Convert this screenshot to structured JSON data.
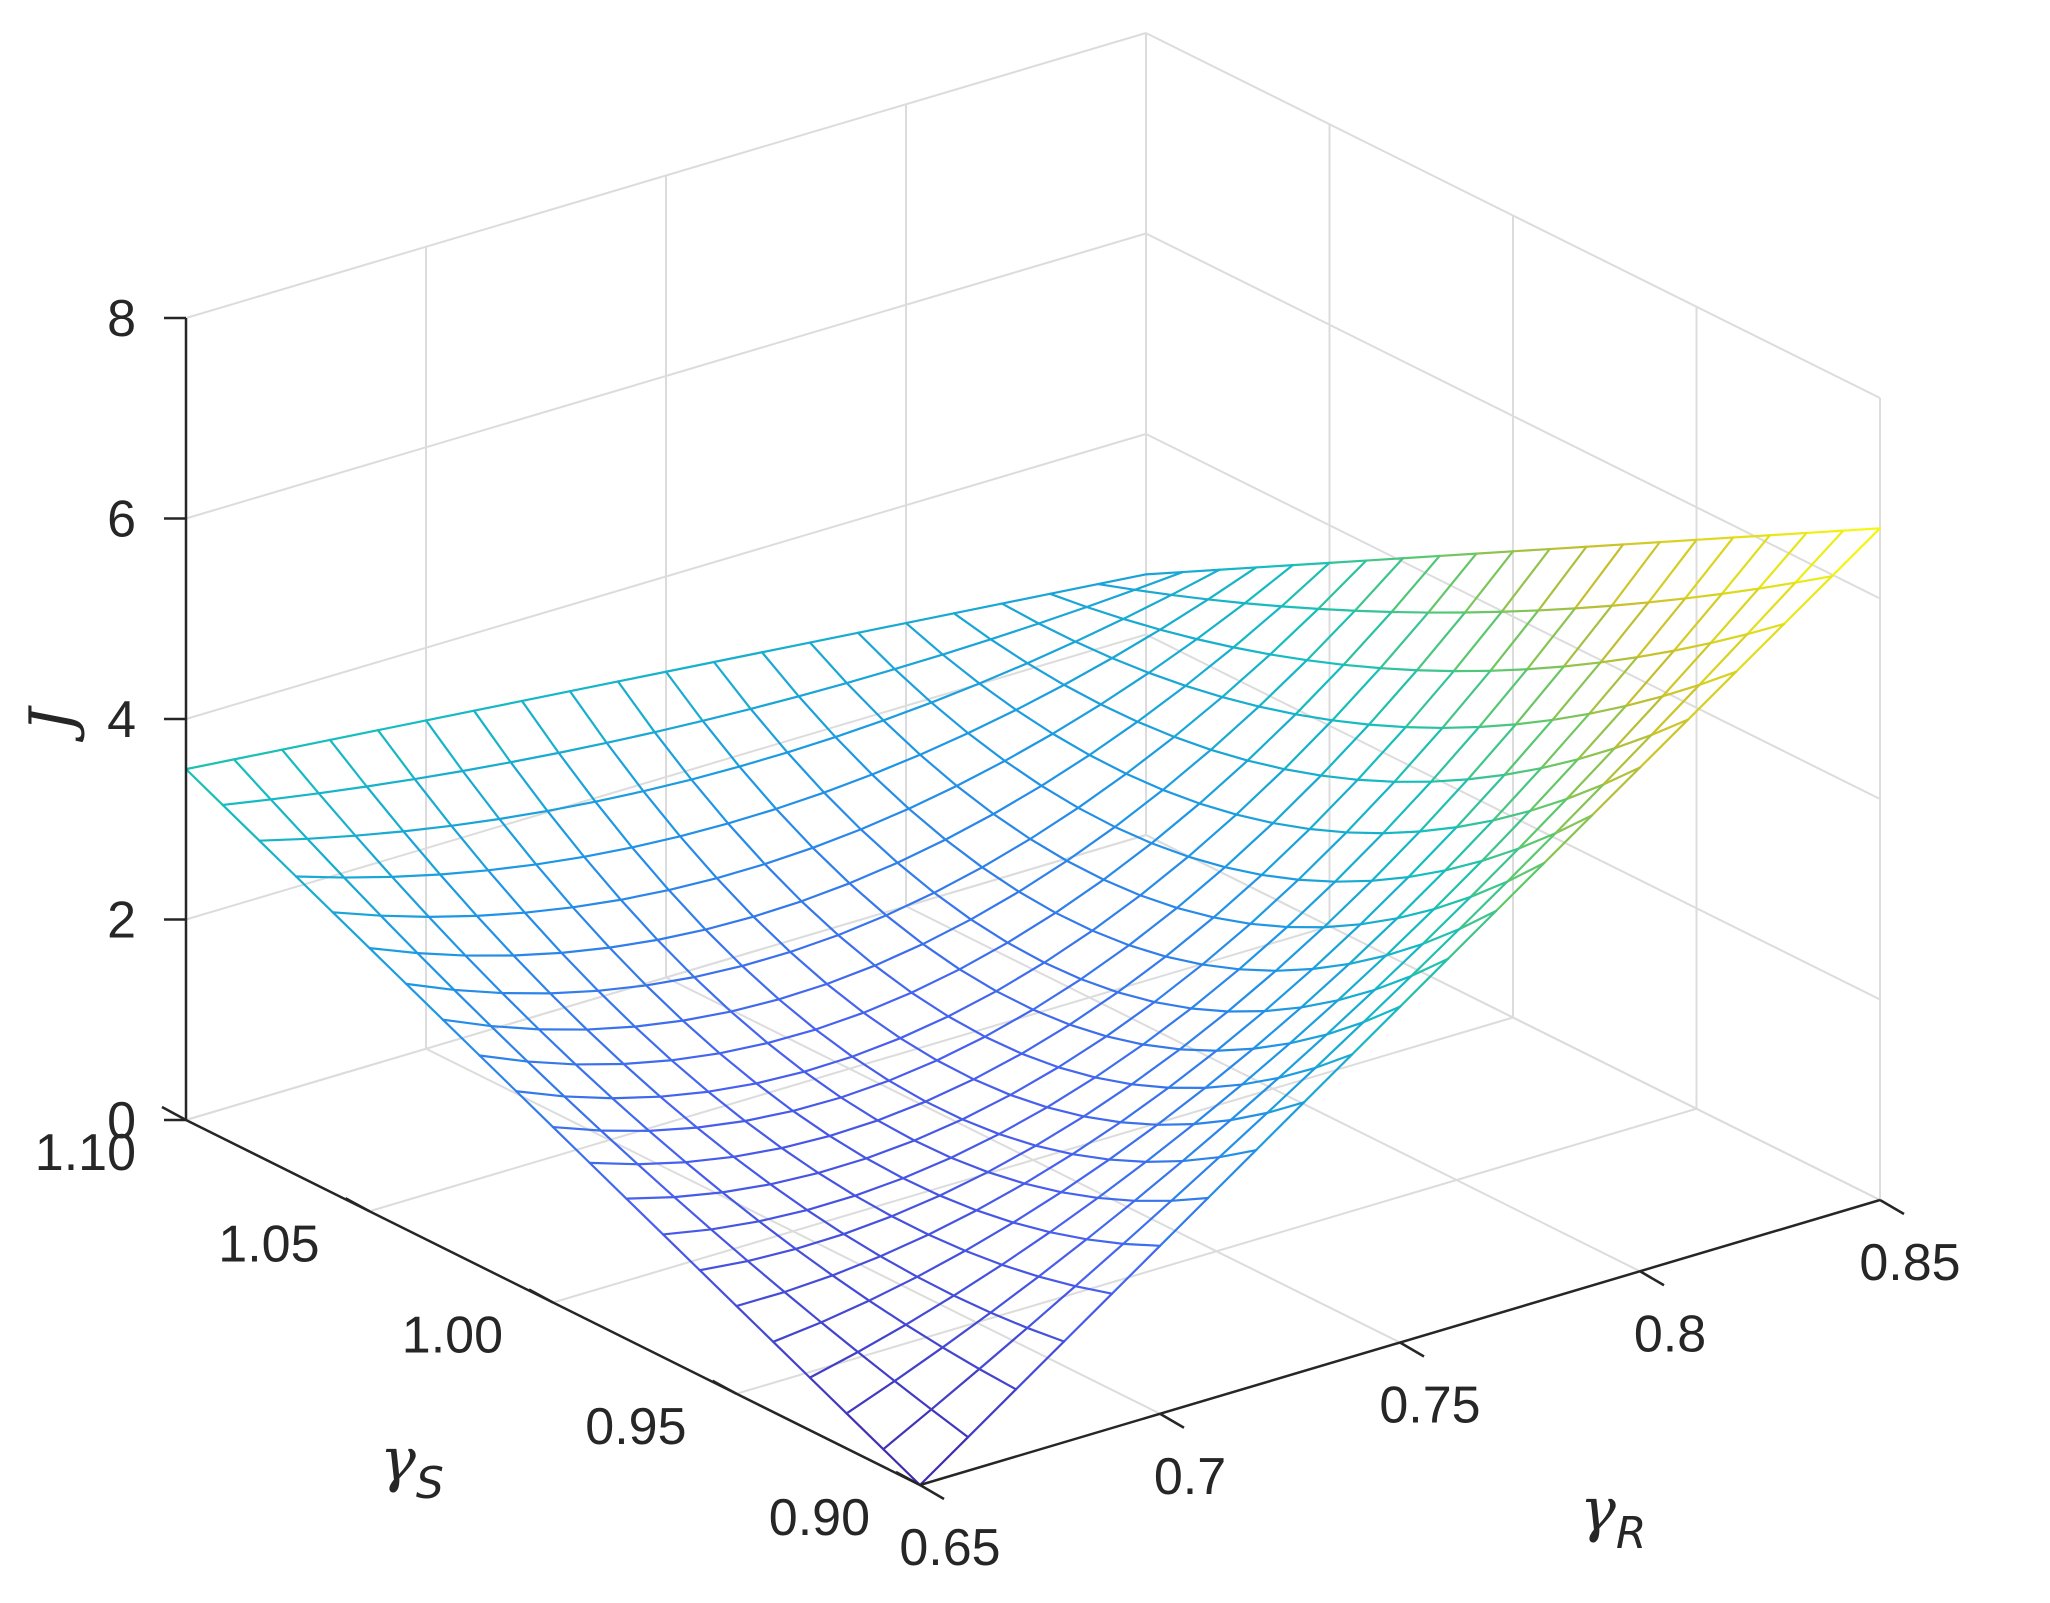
{
  "chart_data": {
    "type": "surface",
    "title": "",
    "xlabel": "γR",
    "ylabel": "γS",
    "zlabel": "J",
    "x_axis": {
      "label_symbol": "γ",
      "label_subscript": "R",
      "range": [
        0.65,
        0.85
      ],
      "ticks": [
        0.65,
        0.7,
        0.75,
        0.8,
        0.85
      ],
      "tick_labels": [
        "0.65",
        "0.7",
        "0.75",
        "0.8",
        "0.85"
      ]
    },
    "y_axis": {
      "label_symbol": "γ",
      "label_subscript": "S",
      "range": [
        0.9,
        1.1
      ],
      "ticks": [
        0.9,
        0.95,
        1.0,
        1.05,
        1.1
      ],
      "tick_labels": [
        "0.90",
        "0.95",
        "1.00",
        "1.05",
        "1.10"
      ]
    },
    "z_axis": {
      "label": "J",
      "range": [
        0,
        8
      ],
      "ticks": [
        0,
        2,
        4,
        6,
        8
      ],
      "tick_labels": [
        "0",
        "2",
        "4",
        "6",
        "8"
      ]
    },
    "grid": true,
    "colormap": "parula",
    "mesh_size": 21,
    "surface_samples": [
      {
        "x": 0.65,
        "y": 0.9,
        "z": 0.0
      },
      {
        "x": 0.65,
        "y": 1.1,
        "z": 3.5
      },
      {
        "x": 0.85,
        "y": 0.9,
        "z": 6.7
      },
      {
        "x": 0.85,
        "y": 1.1,
        "z": 2.6
      },
      {
        "x": 0.75,
        "y": 1.0,
        "z": 1.5
      }
    ]
  },
  "colors": {
    "axis": "#262626",
    "grid": "#dcdcdc",
    "background": "#ffffff"
  }
}
